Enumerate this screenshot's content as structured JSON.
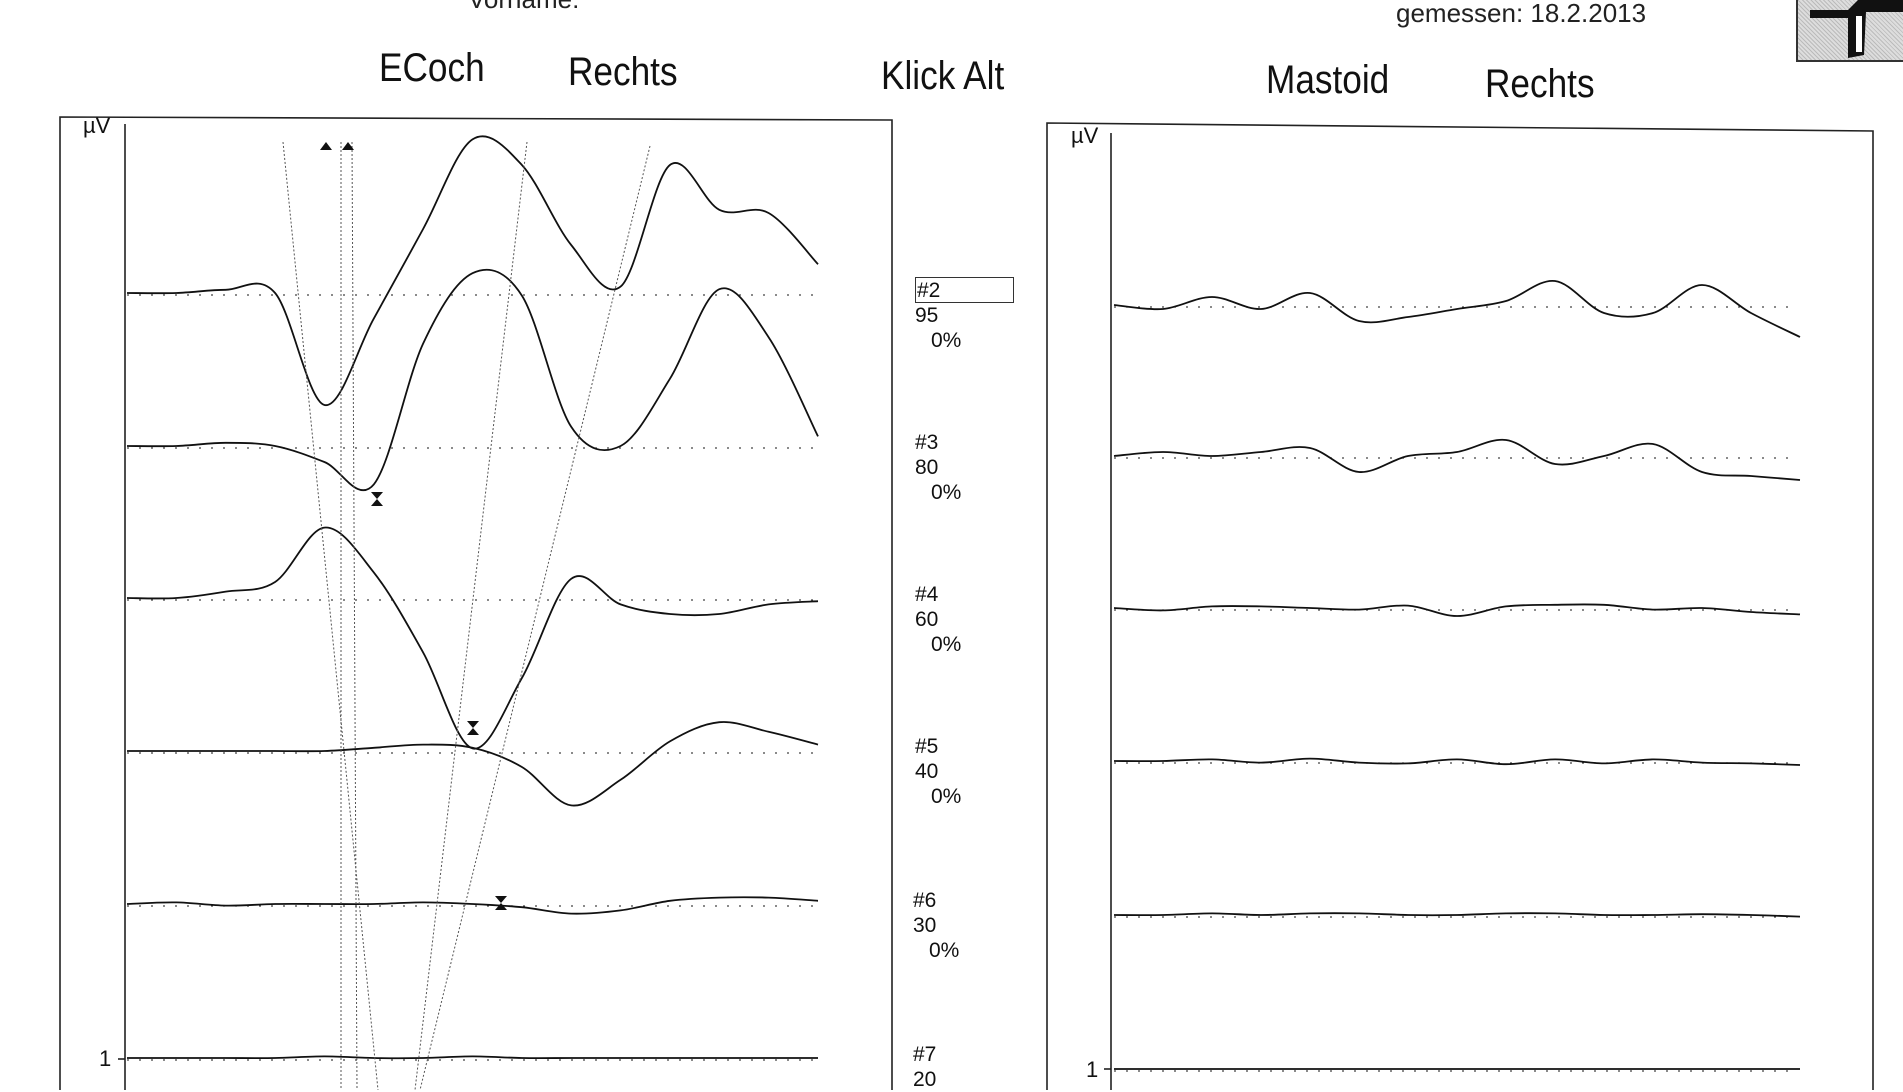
{
  "header": {
    "name_label_partial": "Vorname:",
    "measured": "gemessen: 18.2.2013"
  },
  "left_panel": {
    "title_1": "ECoch",
    "title_2": "Rechts",
    "y_unit": "µV",
    "scale_tick": "1"
  },
  "center": {
    "title": "Klick Alt"
  },
  "right_panel": {
    "title_1": "Mastoid",
    "title_2": "Rechts",
    "y_unit": "µV",
    "scale_tick": "1"
  },
  "traces": [
    {
      "id": "#2",
      "level": "95",
      "artifact": "0%"
    },
    {
      "id": "#3",
      "level": "80",
      "artifact": "0%"
    },
    {
      "id": "#4",
      "level": "60",
      "artifact": "0%"
    },
    {
      "id": "#5",
      "level": "40",
      "artifact": "0%"
    },
    {
      "id": "#6",
      "level": "30",
      "artifact": "0%"
    },
    {
      "id": "#7",
      "level": "20",
      "artifact": ""
    }
  ],
  "chart_data": [
    {
      "type": "line",
      "title": "ECoch Rechts",
      "ylabel": "µV",
      "y_scale_tick": "1",
      "series": [
        {
          "name": "#2",
          "values": [
            0,
            0,
            0.1,
            0,
            -3.5,
            -0.8,
            2,
            4.8,
            4,
            1.5,
            0.2,
            4,
            2.6,
            2.5,
            0.9
          ]
        },
        {
          "name": "#3",
          "values": [
            0,
            0,
            0.1,
            0,
            -0.5,
            -1.2,
            3.2,
            5.4,
            4.7,
            0.6,
            0,
            2.1,
            4.9,
            3.4,
            0.3
          ]
        },
        {
          "name": "#4",
          "values": [
            0,
            0,
            0.2,
            0.5,
            2.2,
            0.8,
            -1.7,
            -4.7,
            -2.5,
            0.6,
            -0.2,
            -0.5,
            -0.5,
            -0.2,
            -0.1
          ]
        },
        {
          "name": "#5",
          "values": [
            0,
            0,
            0,
            0,
            0,
            0.1,
            0.2,
            0.1,
            -0.5,
            -1.7,
            -0.9,
            0.3,
            0.9,
            0.6,
            0.2
          ]
        },
        {
          "name": "#6",
          "values": [
            0,
            0.05,
            -0.05,
            0,
            0,
            0,
            0.05,
            0,
            -0.1,
            -0.3,
            -0.2,
            0.1,
            0.2,
            0.2,
            0.1
          ]
        },
        {
          "name": "#7",
          "values": [
            0,
            0,
            0,
            0,
            0.05,
            0,
            0,
            0.05,
            0,
            0,
            0,
            0,
            0,
            0,
            0
          ]
        }
      ]
    },
    {
      "type": "line",
      "title": "Mastoid Rechts",
      "ylabel": "µV",
      "y_scale_tick": "1",
      "series": [
        {
          "name": "#2",
          "values": [
            0,
            -0.05,
            0.1,
            -0.05,
            0.15,
            -0.2,
            -0.15,
            -0.05,
            0.05,
            0.3,
            -0.1,
            -0.1,
            0.25,
            -0.1,
            -0.4
          ]
        },
        {
          "name": "#3",
          "values": [
            0,
            0.05,
            0,
            0.05,
            0.1,
            -0.2,
            0,
            0.05,
            0.2,
            -0.1,
            0,
            0.15,
            -0.2,
            -0.25,
            -0.3
          ]
        },
        {
          "name": "#4",
          "values": [
            0,
            -0.03,
            0.02,
            0.02,
            0,
            -0.02,
            0.03,
            -0.1,
            0.02,
            0.04,
            0.04,
            -0.02,
            0,
            -0.05,
            -0.08
          ]
        },
        {
          "name": "#5",
          "values": [
            0,
            0,
            0.02,
            -0.02,
            0.03,
            -0.02,
            -0.03,
            0.02,
            -0.04,
            0.02,
            -0.03,
            0.02,
            -0.02,
            -0.03,
            -0.05
          ]
        },
        {
          "name": "#6",
          "values": [
            0,
            0,
            0.02,
            0,
            0.02,
            0.02,
            0,
            0,
            0.02,
            0.02,
            0,
            0,
            0.01,
            0,
            -0.02
          ]
        },
        {
          "name": "#7",
          "values": [
            0,
            0,
            0,
            0,
            0,
            0,
            0,
            0,
            0,
            0,
            0,
            0,
            0,
            0,
            0
          ]
        }
      ]
    }
  ]
}
